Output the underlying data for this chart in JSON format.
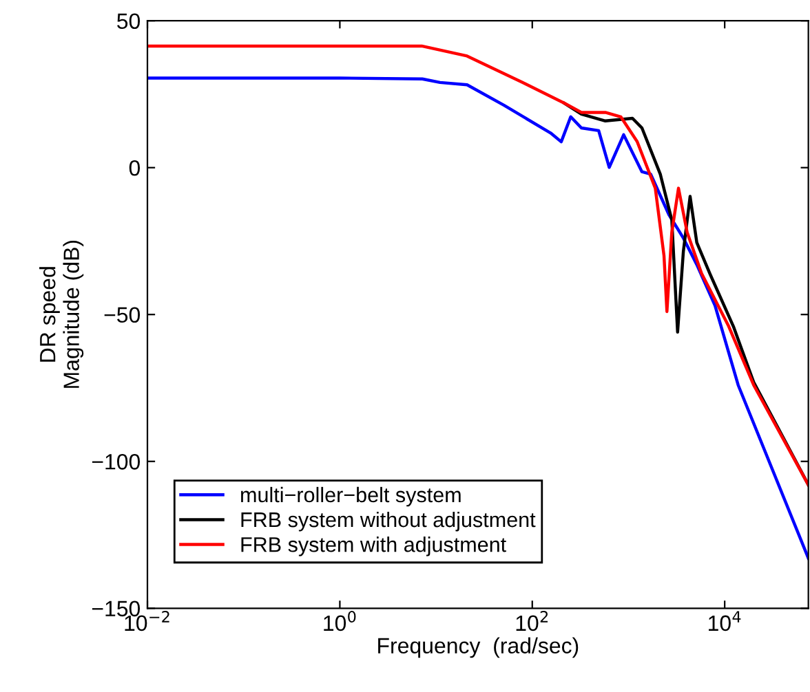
{
  "chart_data": {
    "type": "line",
    "xlabel": "Frequency  (rad/sec)",
    "ylabel": "DR speed\nMagnitude (dB)",
    "log": "x",
    "xlim": [
      0.01,
      74100
    ],
    "ylim": [
      -150,
      50
    ],
    "xticks": [
      {
        "value": 0.01,
        "label": "10$^{−2}$"
      },
      {
        "value": 1,
        "label": "10$^{0}$"
      },
      {
        "value": 100,
        "label": "10$^{2}$"
      },
      {
        "value": 10000,
        "label": "10$^{4}$"
      }
    ],
    "yticks": [
      -150,
      -100,
      -50,
      0,
      50
    ],
    "grid": false,
    "legend": "bottom left",
    "marker": "none",
    "line_style": "solid",
    "series": [
      {
        "name": "multi−roller−belt system",
        "color": "#0000ff",
        "x": [
          0.01,
          1,
          7.2,
          11,
          21,
          51,
          155,
          200,
          251,
          324,
          490,
          631,
          891,
          1380,
          1700,
          2630,
          3720,
          5130,
          7940,
          13800,
          74100
        ],
        "values": [
          30.5,
          30.5,
          30.2,
          29,
          28.2,
          21.2,
          11.8,
          8.8,
          17.3,
          13.5,
          12.6,
          0.1,
          11.2,
          -1.4,
          -2.2,
          -16,
          -24,
          -33,
          -47,
          -74,
          -133
        ]
      },
      {
        "name": "FRB system without adjustment",
        "color": "#000000",
        "x": [
          214,
          324,
          575,
          1100,
          1380,
          2140,
          2820,
          3240,
          3720,
          4370,
          5130,
          7080,
          12300,
          20000,
          74100
        ],
        "values": [
          22,
          18.2,
          15.9,
          16.8,
          13.5,
          -2.2,
          -17.8,
          -56,
          -28.5,
          -9.8,
          -25.5,
          -36.4,
          -54,
          -73,
          -108
        ]
      },
      {
        "name": "FRB system with adjustment",
        "color": "#ff0000",
        "x": [
          0.01,
          1,
          7.1,
          21,
          79,
          214,
          324,
          575,
          832,
          1230,
          1900,
          2340,
          2510,
          2820,
          3310,
          4070,
          5750,
          11000,
          20000,
          74100
        ],
        "values": [
          41.4,
          41.4,
          41.4,
          38,
          29,
          22,
          18.8,
          18.8,
          17.3,
          8.9,
          -7,
          -30,
          -49,
          -22,
          -7,
          -22,
          -36,
          -54,
          -74,
          -108
        ]
      }
    ]
  }
}
